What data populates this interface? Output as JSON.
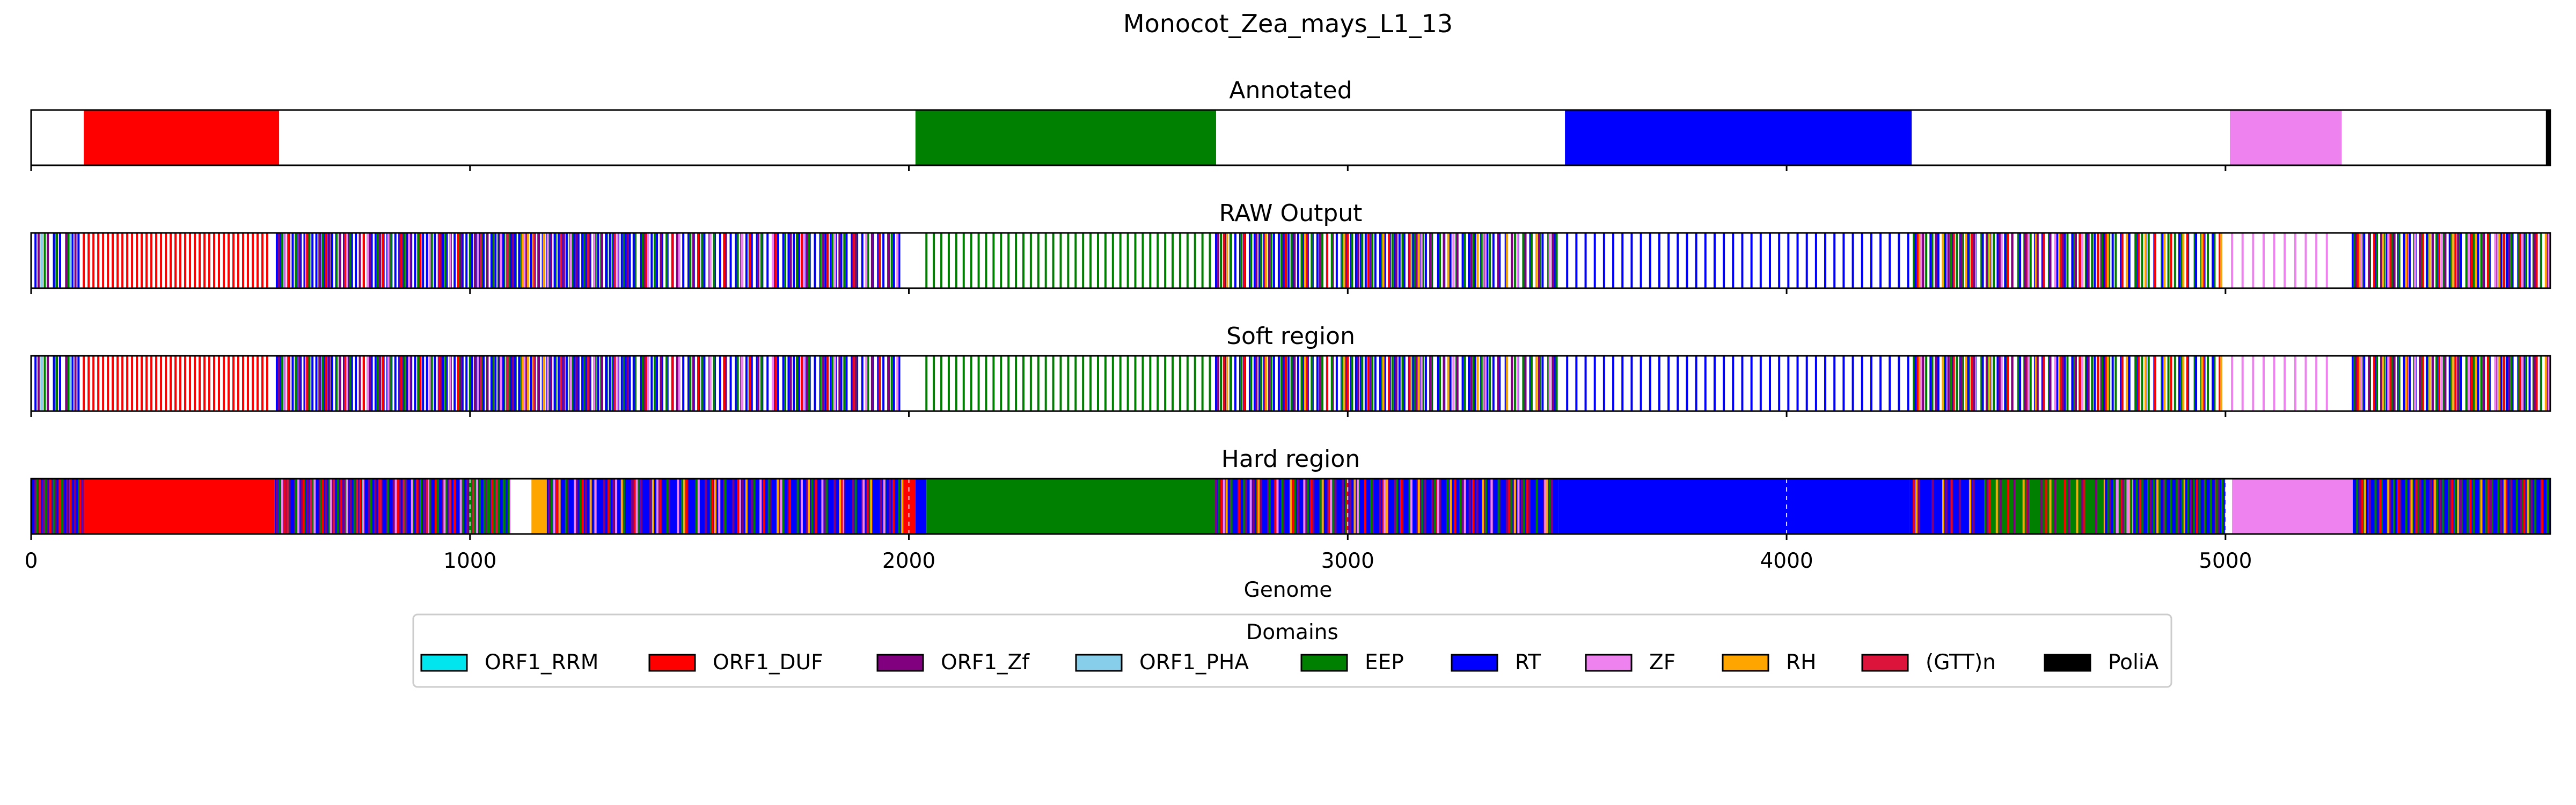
{
  "chart_data": {
    "type": "genome-track",
    "title": "Monocot_Zea_mays_L1_13",
    "xlabel": "Genome",
    "xlim": [
      0,
      5740
    ],
    "xticks": [
      0,
      1000,
      2000,
      3000,
      4000,
      5000
    ],
    "legend_title": "Domains",
    "colors": {
      "ORF1_RRM": "#00e5ee",
      "ORF1_DUF": "#ff0000",
      "ORF1_Zf": "#800080",
      "ORF1_PHA": "#87ceeb",
      "EEP": "#008000",
      "RT": "#0000ff",
      "ZF": "#ee82ee",
      "RH": "#ffa500",
      "(GTT)n": "#dc143c",
      "PoliA": "#000000"
    },
    "legend": [
      "ORF1_RRM",
      "ORF1_DUF",
      "ORF1_Zf",
      "ORF1_PHA",
      "EEP",
      "RT",
      "ZF",
      "RH",
      "(GTT)n",
      "PoliA"
    ],
    "tracks": [
      {
        "name": "Annotated",
        "segments": [
          {
            "domain": "ORF1_DUF",
            "start": 120,
            "end": 565
          },
          {
            "domain": "EEP",
            "start": 2015,
            "end": 2700
          },
          {
            "domain": "RT",
            "start": 3495,
            "end": 4285
          },
          {
            "domain": "ZF",
            "start": 5010,
            "end": 5265
          },
          {
            "domain": "PoliA",
            "start": 5730,
            "end": 5740
          }
        ]
      },
      {
        "name": "RAW Output",
        "lines": [
          {
            "domain": "RT",
            "start": 10,
            "end": 110,
            "step": 14
          },
          {
            "domain": "ORF1_Zf",
            "start": 17,
            "end": 110,
            "step": 21
          },
          {
            "domain": "ORF1_PHA",
            "start": 24,
            "end": 110,
            "step": 33
          },
          {
            "domain": "EEP",
            "start": 31,
            "end": 110,
            "step": 27
          },
          {
            "domain": "ORF1_DUF",
            "start": 120,
            "end": 545,
            "step": 11
          },
          {
            "domain": "RT",
            "start": 560,
            "end": 1000,
            "step": 9
          },
          {
            "domain": "ORF1_Zf",
            "start": 565,
            "end": 1000,
            "step": 23
          },
          {
            "domain": "EEP",
            "start": 572,
            "end": 1000,
            "step": 31
          },
          {
            "domain": "ZF",
            "start": 579,
            "end": 1000,
            "step": 47
          },
          {
            "domain": "ORF1_DUF",
            "start": 586,
            "end": 1000,
            "step": 43
          },
          {
            "domain": "EEP",
            "start": 1000,
            "end": 1380,
            "step": 13
          },
          {
            "domain": "RT",
            "start": 1004,
            "end": 1380,
            "step": 9
          },
          {
            "domain": "RH",
            "start": 1120,
            "end": 1170,
            "step": 12
          },
          {
            "domain": "ORF1_Zf",
            "start": 1011,
            "end": 1380,
            "step": 29
          },
          {
            "domain": "ZF",
            "start": 1018,
            "end": 1380,
            "step": 53
          },
          {
            "domain": "(GTT)n",
            "start": 1025,
            "end": 1380,
            "step": 61
          },
          {
            "domain": "RT",
            "start": 1390,
            "end": 1985,
            "step": 12
          },
          {
            "domain": "EEP",
            "start": 1394,
            "end": 1985,
            "step": 27
          },
          {
            "domain": "ORF1_Zf",
            "start": 1398,
            "end": 1985,
            "step": 37
          },
          {
            "domain": "ORF1_DUF",
            "start": 1402,
            "end": 1985,
            "step": 59
          },
          {
            "domain": "ZF",
            "start": 1406,
            "end": 1985,
            "step": 71
          },
          {
            "domain": "EEP",
            "start": 2040,
            "end": 2700,
            "step": 17
          },
          {
            "domain": "RT",
            "start": 2700,
            "end": 3150,
            "step": 11
          },
          {
            "domain": "ORF1_Zf",
            "start": 2705,
            "end": 3150,
            "step": 29
          },
          {
            "domain": "EEP",
            "start": 2711,
            "end": 3150,
            "step": 23
          },
          {
            "domain": "ORF1_DUF",
            "start": 2718,
            "end": 3150,
            "step": 47
          },
          {
            "domain": "RH",
            "start": 2725,
            "end": 3150,
            "step": 89
          },
          {
            "domain": "RT",
            "start": 3150,
            "end": 3480,
            "step": 14
          },
          {
            "domain": "EEP",
            "start": 3153,
            "end": 3480,
            "step": 19
          },
          {
            "domain": "ORF1_Zf",
            "start": 3157,
            "end": 3480,
            "step": 31
          },
          {
            "domain": "RH",
            "start": 3162,
            "end": 3480,
            "step": 67
          },
          {
            "domain": "ZF",
            "start": 3168,
            "end": 3480,
            "step": 73
          },
          {
            "domain": "RT",
            "start": 3500,
            "end": 4280,
            "step": 21
          },
          {
            "domain": "EEP",
            "start": 4290,
            "end": 4720,
            "step": 14
          },
          {
            "domain": "RT",
            "start": 4294,
            "end": 4720,
            "step": 17
          },
          {
            "domain": "ORF1_DUF",
            "start": 4299,
            "end": 4720,
            "step": 41
          },
          {
            "domain": "RH",
            "start": 4303,
            "end": 4720,
            "step": 53
          },
          {
            "domain": "ZF",
            "start": 4307,
            "end": 4720,
            "step": 61
          },
          {
            "domain": "ORF1_Zf",
            "start": 4311,
            "end": 4720,
            "step": 29
          },
          {
            "domain": "EEP",
            "start": 4720,
            "end": 5000,
            "step": 15
          },
          {
            "domain": "RT",
            "start": 4724,
            "end": 5000,
            "step": 19
          },
          {
            "domain": "ORF1_DUF",
            "start": 4728,
            "end": 5000,
            "step": 37
          },
          {
            "domain": "RH",
            "start": 4732,
            "end": 5000,
            "step": 43
          },
          {
            "domain": "ZF",
            "start": 5015,
            "end": 5250,
            "step": 24
          },
          {
            "domain": "RT",
            "start": 5290,
            "end": 5740,
            "step": 13
          },
          {
            "domain": "EEP",
            "start": 5294,
            "end": 5740,
            "step": 17
          },
          {
            "domain": "ORF1_Zf",
            "start": 5298,
            "end": 5740,
            "step": 29
          },
          {
            "domain": "ORF1_DUF",
            "start": 5302,
            "end": 5740,
            "step": 37
          },
          {
            "domain": "RH",
            "start": 5306,
            "end": 5740,
            "step": 53
          },
          {
            "domain": "ZF",
            "start": 5310,
            "end": 5740,
            "step": 61
          }
        ]
      },
      {
        "name": "Soft region",
        "same_as": "RAW Output"
      },
      {
        "name": "Hard region",
        "segments": [
          {
            "domain": "RT",
            "start": 0,
            "end": 120
          },
          {
            "domain": "ORF1_DUF",
            "start": 120,
            "end": 555
          },
          {
            "domain": "RT",
            "start": 555,
            "end": 1090
          },
          {
            "domain": "RH",
            "start": 1140,
            "end": 1175
          },
          {
            "domain": "RT",
            "start": 1175,
            "end": 1985
          },
          {
            "domain": "ORF1_DUF",
            "start": 1985,
            "end": 2015
          },
          {
            "domain": "RT",
            "start": 2015,
            "end": 2040
          },
          {
            "domain": "EEP",
            "start": 2040,
            "end": 2700
          },
          {
            "domain": "RT",
            "start": 2700,
            "end": 3480
          },
          {
            "domain": "RT",
            "start": 3480,
            "end": 4280
          },
          {
            "domain": "RT",
            "start": 4280,
            "end": 5000
          },
          {
            "domain": "EEP",
            "start": 4450,
            "end": 4720
          },
          {
            "domain": "ZF",
            "start": 4750,
            "end": 4790
          },
          {
            "domain": "ZF",
            "start": 5015,
            "end": 5290
          },
          {
            "domain": "RT",
            "start": 5290,
            "end": 5740
          }
        ],
        "lines": [
          {
            "domain": "ORF1_Zf",
            "start": 10,
            "end": 120,
            "step": 9
          },
          {
            "domain": "EEP",
            "start": 14,
            "end": 120,
            "step": 19
          },
          {
            "domain": "ORF1_DUF",
            "start": 20,
            "end": 120,
            "step": 23
          },
          {
            "domain": "ORF1_Zf",
            "start": 560,
            "end": 1090,
            "step": 14
          },
          {
            "domain": "EEP",
            "start": 566,
            "end": 1090,
            "step": 19
          },
          {
            "domain": "ZF",
            "start": 572,
            "end": 1090,
            "step": 37
          },
          {
            "domain": "ORF1_DUF",
            "start": 578,
            "end": 1090,
            "step": 43
          },
          {
            "domain": "(GTT)n",
            "start": 584,
            "end": 1090,
            "step": 53
          },
          {
            "domain": "EEP",
            "start": 1000,
            "end": 1090,
            "step": 11
          },
          {
            "domain": "ORF1_Zf",
            "start": 1180,
            "end": 1985,
            "step": 21
          },
          {
            "domain": "EEP",
            "start": 1186,
            "end": 1985,
            "step": 33
          },
          {
            "domain": "ZF",
            "start": 1192,
            "end": 1985,
            "step": 47
          },
          {
            "domain": "ORF1_DUF",
            "start": 1198,
            "end": 1985,
            "step": 59
          },
          {
            "domain": "RH",
            "start": 1204,
            "end": 1985,
            "step": 71
          },
          {
            "domain": "ORF1_Zf",
            "start": 2700,
            "end": 3480,
            "step": 17
          },
          {
            "domain": "EEP",
            "start": 2706,
            "end": 3480,
            "step": 29
          },
          {
            "domain": "ORF1_DUF",
            "start": 2712,
            "end": 3480,
            "step": 41
          },
          {
            "domain": "ZF",
            "start": 2718,
            "end": 3480,
            "step": 61
          },
          {
            "domain": "RH",
            "start": 2724,
            "end": 3480,
            "step": 73
          },
          {
            "domain": "ORF1_DUF",
            "start": 4290,
            "end": 5000,
            "step": 43
          },
          {
            "domain": "RH",
            "start": 4296,
            "end": 5000,
            "step": 61
          },
          {
            "domain": "ORF1_Zf",
            "start": 4302,
            "end": 5000,
            "step": 31
          },
          {
            "domain": "EEP",
            "start": 4720,
            "end": 5000,
            "step": 13
          },
          {
            "domain": "EEP",
            "start": 5300,
            "end": 5740,
            "step": 14
          },
          {
            "domain": "ORF1_Zf",
            "start": 5306,
            "end": 5740,
            "step": 23
          },
          {
            "domain": "ORF1_DUF",
            "start": 5312,
            "end": 5740,
            "step": 41
          },
          {
            "domain": "RH",
            "start": 5318,
            "end": 5740,
            "step": 53
          }
        ],
        "dashed_gridlines": true
      }
    ]
  }
}
